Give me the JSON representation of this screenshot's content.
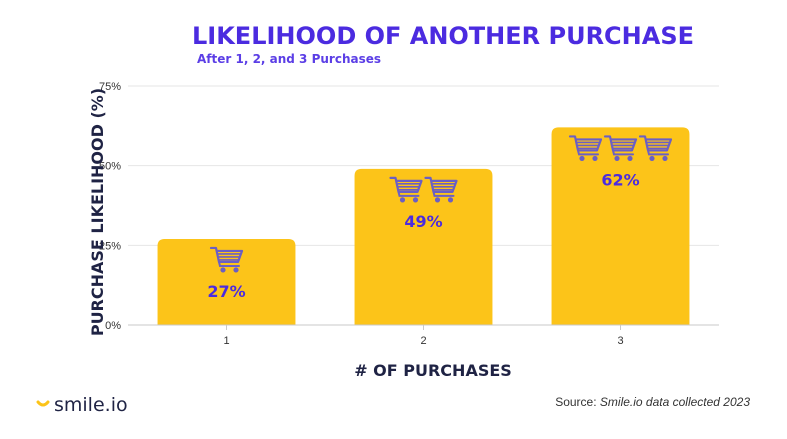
{
  "chart_data": {
    "type": "bar",
    "title": "LIKELIHOOD OF ANOTHER PURCHASE",
    "subtitle": "After 1, 2, and 3 Purchases",
    "xlabel": "# OF PURCHASES",
    "ylabel": "PURCHASE LIKELIHOOD (%)",
    "categories": [
      "1",
      "2",
      "3"
    ],
    "values": [
      27,
      49,
      62
    ],
    "data_labels": [
      "27%",
      "49%",
      "62%"
    ],
    "cart_icons_per_bar": [
      1,
      2,
      3
    ],
    "ylim": [
      0,
      75
    ],
    "yticks": [
      0,
      25,
      50,
      75
    ],
    "ytick_labels": [
      "0%",
      "25%",
      "50%",
      "75%"
    ],
    "grid": true,
    "bar_color": "#fcc419",
    "label_color": "#4b2be0",
    "icon": "shopping-cart-icon"
  },
  "branding": {
    "logo_text": "smile.io",
    "logo_icon": "smile-icon",
    "accent_color": "#fcc419"
  },
  "footer": {
    "source_prefix": "Source: ",
    "source_text": "Smile.io data collected 2023"
  }
}
